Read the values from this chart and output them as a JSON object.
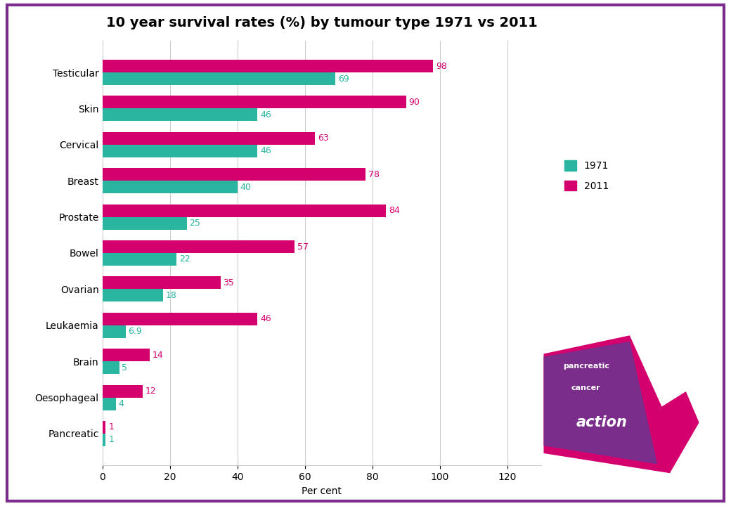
{
  "title": "10 year survival rates (%) by tumour type 1971 vs 2011",
  "categories": [
    "Testicular",
    "Skin",
    "Cervical",
    "Breast",
    "Prostate",
    "Bowel",
    "Ovarian",
    "Leukaemia",
    "Brain",
    "Oesophageal",
    "Pancreatic"
  ],
  "values_1971": [
    69,
    46,
    46,
    40,
    25,
    22,
    18,
    6.9,
    5,
    4,
    1
  ],
  "values_2011": [
    98,
    90,
    63,
    78,
    84,
    57,
    35,
    46,
    14,
    12,
    1
  ],
  "color_1971": "#2ab5a0",
  "color_2011": "#d4006e",
  "xlabel": "Per cent",
  "xlim": [
    0,
    130
  ],
  "xticks": [
    0,
    20,
    40,
    60,
    80,
    100,
    120
  ],
  "bar_height": 0.35,
  "background_color": "#ffffff",
  "border_color": "#7b2d8b",
  "title_fontsize": 14,
  "label_fontsize": 10,
  "tick_fontsize": 10,
  "legend_1971": "1971",
  "legend_2011": "2011",
  "logo_pink": "#d4006e",
  "logo_purple": "#7b2d8b"
}
